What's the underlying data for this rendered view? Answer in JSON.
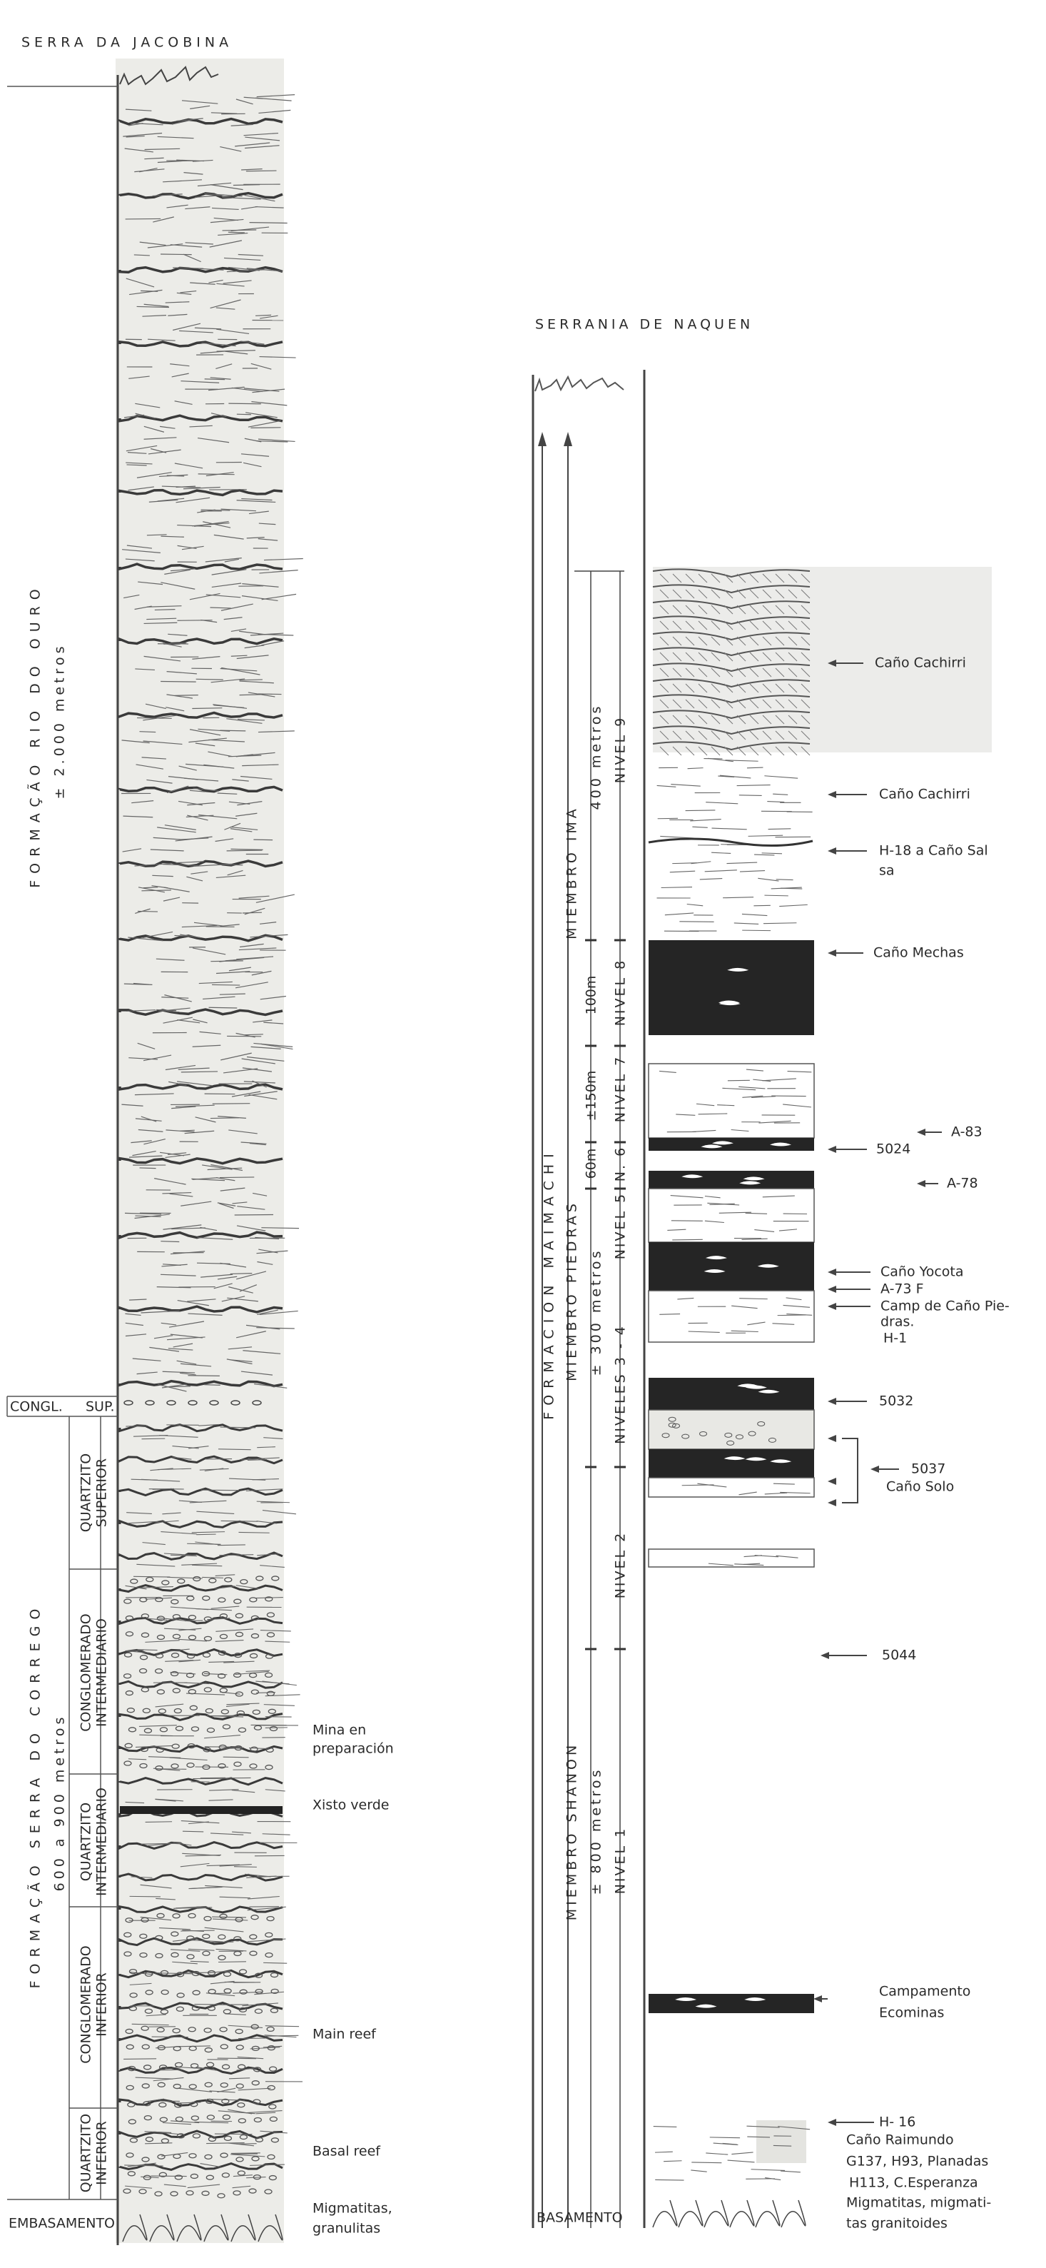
{
  "left_section": {
    "title": "SERRA DA JACOBINA",
    "formations": [
      {
        "name": "FORMAÇÃO RIO DO OURO",
        "thickness": "± 2.000 metros"
      },
      {
        "name": "FORMAÇÃO SERRA DO CORREGO",
        "thickness": "600 a 900 metros"
      }
    ],
    "congl_sup": [
      "CONGL.",
      "SUP."
    ],
    "units": [
      [
        "QUARTZITO",
        "SUPERIOR"
      ],
      [
        "CONGLOMERADO",
        "INTERMEDIARIO"
      ],
      [
        "QUARTZITO",
        "INTERMEDIARIO"
      ],
      [
        "CONGLOMERADO",
        "INFERIOR"
      ],
      [
        "QUARTZITO",
        "INFERIOR"
      ]
    ],
    "basement": "EMBASAMENTO",
    "annotations": [
      [
        "Mina en",
        "preparación"
      ],
      [
        "Xisto verde"
      ],
      [
        "Main reef"
      ],
      [
        "Basal reef"
      ],
      [
        "Migmatitas,",
        "granulitas"
      ]
    ]
  },
  "right_section": {
    "title": "SERRANIA DE NAQUEN",
    "formation": "FORMACION MAIMACHI",
    "members": [
      {
        "name": "MIEMBRO IMA",
        "thickness": "400 metros"
      },
      {
        "name": "MIEMBRO PIEDRAS",
        "thickness": "± 300 metros"
      },
      {
        "name": "MIEMBRO SHANON",
        "thickness": "± 800 metros"
      }
    ],
    "levels": [
      "NIVEL 9",
      "NIVEL 8",
      "NIVEL 7",
      "N. 6",
      "NIVEL 5",
      "NIVELES 3 - 4",
      "NIVEL 2",
      "NIVEL 1"
    ],
    "level_thicknesses": [
      "100m",
      "±150m",
      "60m"
    ],
    "basement": "BASAMENTO",
    "annotations": [
      [
        "Caño Cachirri"
      ],
      [
        "Caño Cachirri"
      ],
      [
        "H-18 a Caño Sal",
        "sa"
      ],
      [
        "Caño Mechas"
      ],
      [
        "A-83"
      ],
      [
        "5024"
      ],
      [
        "A-78"
      ],
      [
        "Caño Yocota"
      ],
      [
        "A-73 F"
      ],
      [
        "Camp de Caño Pie-",
        "dras."
      ],
      [
        "H-1"
      ],
      [
        "5032"
      ],
      [
        "5037"
      ],
      [
        "Caño Solo"
      ],
      [
        "5044"
      ],
      [
        "Campamento",
        "Ecominas"
      ],
      [
        "H- 16"
      ],
      [
        "Caño Raimundo"
      ],
      [
        "G137, H93, Planadas"
      ],
      [
        "H113, C.Esperanza"
      ],
      [
        "Migmatitas, migmati-",
        "tas granitoides"
      ]
    ]
  }
}
